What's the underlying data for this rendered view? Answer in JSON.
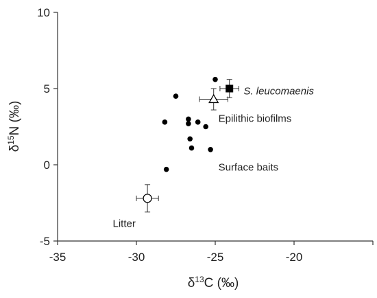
{
  "chart_data": {
    "type": "scatter",
    "xlim": [
      -35,
      -15
    ],
    "ylim": [
      -5,
      10
    ],
    "xticks": [
      -35,
      -30,
      -25,
      -20
    ],
    "yticks": [
      -5,
      0,
      5,
      10
    ],
    "xlabel": "δ13C (‰)",
    "xlabel_parts": {
      "prefix": "δ",
      "sup": "13",
      "suffix": "C (‰)"
    },
    "ylabel": "δ15N (‰)",
    "ylabel_parts": {
      "prefix": "δ",
      "sup": "15",
      "suffix": "N (‰)"
    },
    "grid": false,
    "series": [
      {
        "name": "Surface baits",
        "marker": "filled-circle-small",
        "color": "#000000",
        "points": [
          {
            "x": -28.2,
            "y": 2.8
          },
          {
            "x": -28.1,
            "y": -0.3
          },
          {
            "x": -27.5,
            "y": 4.5
          },
          {
            "x": -26.7,
            "y": 3.0
          },
          {
            "x": -26.7,
            "y": 2.7
          },
          {
            "x": -26.6,
            "y": 1.7
          },
          {
            "x": -26.5,
            "y": 1.1
          },
          {
            "x": -26.1,
            "y": 2.8
          },
          {
            "x": -25.6,
            "y": 2.5
          },
          {
            "x": -25.3,
            "y": 1.0
          },
          {
            "x": -25.0,
            "y": 5.6
          }
        ]
      },
      {
        "name": "S. leucomaenis",
        "marker": "filled-square",
        "color": "#000000",
        "points": [
          {
            "x": -24.1,
            "y": 5.0,
            "xerr": 0.6,
            "yerr": 0.6
          }
        ]
      },
      {
        "name": "Epilithic biofilms",
        "marker": "open-triangle",
        "color": "#000000",
        "points": [
          {
            "x": -25.1,
            "y": 4.3,
            "xerr": 0.9,
            "yerr": 0.7
          }
        ]
      },
      {
        "name": "Litter",
        "marker": "open-circle",
        "color": "#000000",
        "points": [
          {
            "x": -29.3,
            "y": -2.2,
            "xerr": 0.7,
            "yerr": 0.9
          }
        ]
      }
    ],
    "annotations": [
      {
        "text": "S. leucomaenis",
        "italic": true,
        "anchor_x": -23.2,
        "anchor_y": 4.85
      },
      {
        "text": "Epilithic biofilms",
        "italic": false,
        "anchor_x": -24.8,
        "anchor_y": 3.05
      },
      {
        "text": "Surface baits",
        "italic": false,
        "anchor_x": -24.8,
        "anchor_y": -0.15
      },
      {
        "text": "Litter",
        "italic": false,
        "anchor_x": -31.5,
        "anchor_y": -3.85
      }
    ]
  }
}
